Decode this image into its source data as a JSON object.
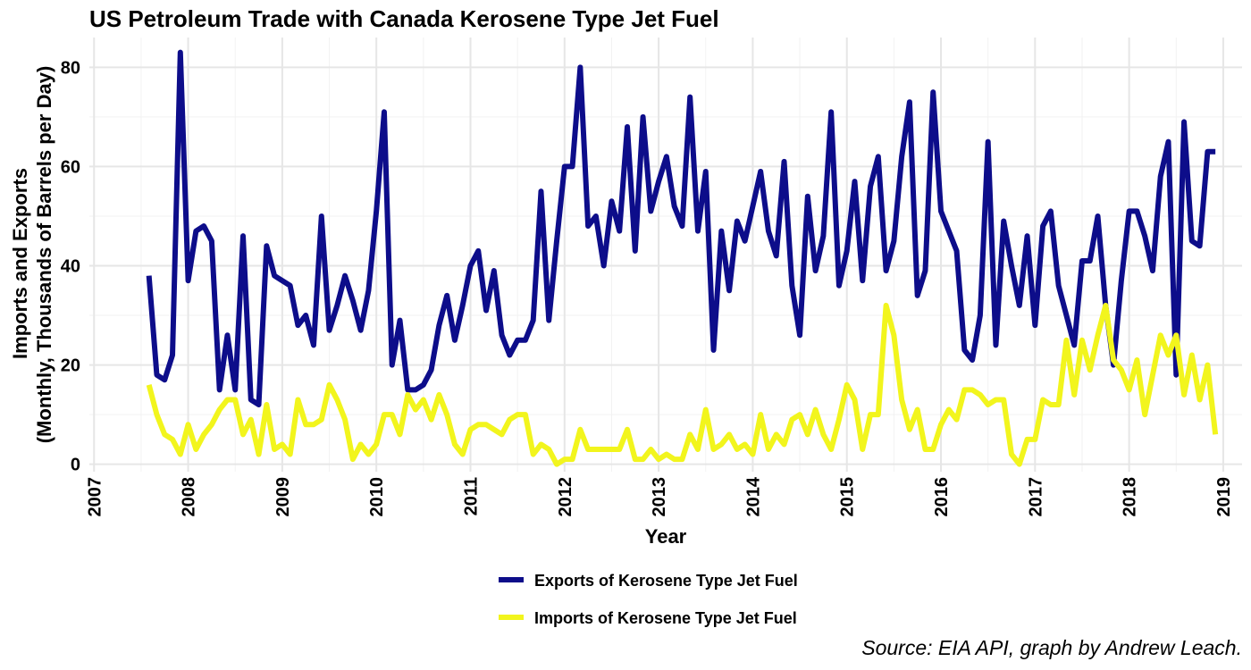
{
  "chart_data": {
    "type": "line",
    "title": "US Petroleum Trade with Canada Kerosene Type Jet Fuel",
    "xlabel": "Year",
    "ylabel_line1": "Imports and Exports",
    "ylabel_line2": "(Monthly, Thousands of Barrels per Day)",
    "source": "Source: EIA API, graph by Andrew Leach.",
    "x_ticks": [
      "2007",
      "2008",
      "2009",
      "2010",
      "2011",
      "2012",
      "2013",
      "2014",
      "2015",
      "2016",
      "2017",
      "2018",
      "2019"
    ],
    "y_ticks": [
      0,
      20,
      40,
      60,
      80
    ],
    "xlim": [
      2006.95,
      2019.2
    ],
    "ylim": [
      -1.5,
      86
    ],
    "grid": true,
    "legend_position": "bottom",
    "start": "2007-08",
    "series": [
      {
        "name": "Exports of Kerosene Type Jet Fuel",
        "color": "#0d0d8a",
        "values": [
          38,
          18,
          17,
          22,
          83,
          37,
          47,
          48,
          45,
          15,
          26,
          15,
          46,
          13,
          12,
          44,
          38,
          37,
          36,
          28,
          30,
          24,
          50,
          27,
          32,
          38,
          33,
          27,
          35,
          51,
          71,
          20,
          29,
          15,
          15,
          16,
          19,
          28,
          34,
          25,
          32,
          40,
          43,
          31,
          39,
          26,
          22,
          25,
          25,
          29,
          55,
          29,
          45,
          60,
          60,
          80,
          48,
          50,
          40,
          53,
          47,
          68,
          43,
          70,
          51,
          57,
          62,
          52,
          48,
          74,
          47,
          59,
          23,
          47,
          35,
          49,
          45,
          52,
          59,
          47,
          42,
          61,
          36,
          26,
          54,
          39,
          46,
          71,
          36,
          43,
          57,
          37,
          56,
          62,
          39,
          45,
          62,
          73,
          34,
          39,
          75,
          51,
          47,
          43,
          23,
          21,
          30,
          65,
          24,
          49,
          40,
          32,
          46,
          28,
          48,
          51,
          36,
          30,
          24,
          41,
          41,
          50,
          32,
          20,
          37,
          51,
          51,
          46,
          39,
          58,
          65,
          18,
          69,
          45,
          44,
          63,
          63
        ]
      },
      {
        "name": "Imports of Kerosene Type Jet Fuel",
        "color": "#f2f51d",
        "values": [
          16,
          10,
          6,
          5,
          2,
          8,
          3,
          6,
          8,
          11,
          13,
          13,
          6,
          9,
          2,
          12,
          3,
          4,
          2,
          13,
          8,
          8,
          9,
          16,
          13,
          9,
          1,
          4,
          2,
          4,
          10,
          10,
          6,
          14,
          11,
          13,
          9,
          14,
          10,
          4,
          2,
          7,
          8,
          8,
          7,
          6,
          9,
          10,
          10,
          2,
          4,
          3,
          0,
          1,
          1,
          7,
          3,
          3,
          3,
          3,
          3,
          7,
          1,
          1,
          3,
          1,
          2,
          1,
          1,
          6,
          3,
          11,
          3,
          4,
          6,
          3,
          4,
          2,
          10,
          3,
          6,
          4,
          9,
          10,
          6,
          11,
          6,
          3,
          9,
          16,
          13,
          3,
          10,
          10,
          32,
          26,
          13,
          7,
          11,
          3,
          3,
          8,
          11,
          9,
          15,
          15,
          14,
          12,
          13,
          13,
          2,
          0,
          5,
          5,
          13,
          12,
          12,
          25,
          14,
          25,
          19,
          26,
          32,
          21,
          19,
          15,
          21,
          10,
          18,
          26,
          22,
          26,
          14,
          22,
          13,
          20,
          6
        ]
      }
    ]
  }
}
